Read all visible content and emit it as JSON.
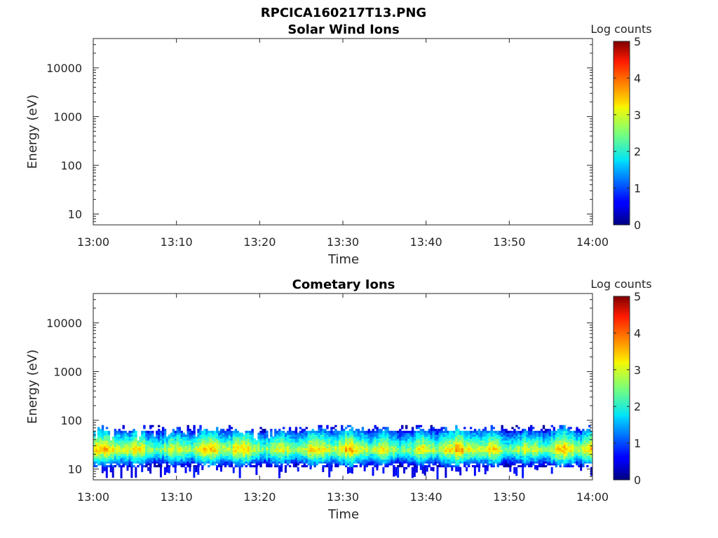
{
  "figure_title": "RPCICA160217T13.PNG",
  "chart_data": [
    {
      "type": "heatmap",
      "title": "Solar Wind Ions",
      "xlabel": "Time",
      "ylabel": "Energy (eV)",
      "yscale": "log",
      "ylim": [
        6,
        40000
      ],
      "xlim": [
        "13:00",
        "14:00"
      ],
      "xticks": [
        "13:00",
        "13:10",
        "13:20",
        "13:30",
        "13:40",
        "13:50",
        "14:00"
      ],
      "yticks": [
        10,
        100,
        1000,
        10000
      ],
      "ytick_labels": [
        "10",
        "100",
        "1000",
        "10000"
      ],
      "colorbar": {
        "label": "Log counts",
        "min": 0,
        "max": 5,
        "ticks": [
          "0",
          "1",
          "2",
          "3",
          "4",
          "5"
        ],
        "colormap": "jet"
      },
      "data_summary": "No counts shown (empty panel)",
      "bands": []
    },
    {
      "type": "heatmap",
      "title": "Cometary Ions",
      "xlabel": "Time",
      "ylabel": "Energy (eV)",
      "yscale": "log",
      "ylim": [
        6,
        40000
      ],
      "xlim": [
        "13:00",
        "14:00"
      ],
      "xticks": [
        "13:00",
        "13:10",
        "13:20",
        "13:30",
        "13:40",
        "13:50",
        "14:00"
      ],
      "yticks": [
        10,
        100,
        1000,
        10000
      ],
      "ytick_labels": [
        "10",
        "100",
        "1000",
        "10000"
      ],
      "colorbar": {
        "label": "Log counts",
        "min": 0,
        "max": 5,
        "ticks": [
          "0",
          "1",
          "2",
          "3",
          "4",
          "5"
        ],
        "colormap": "jet"
      },
      "data_summary": "Continuous low-energy ion band between ~10 and ~80 eV, peak near 25 eV with log counts ~2.5-3, throughout 13:00-14:00",
      "bands": [
        {
          "energy_low_eV": 11,
          "energy_high_eV": 80,
          "peak_energy_eV": 25,
          "peak_log_counts": 3.0,
          "edge_log_counts": 0.5
        }
      ]
    }
  ]
}
